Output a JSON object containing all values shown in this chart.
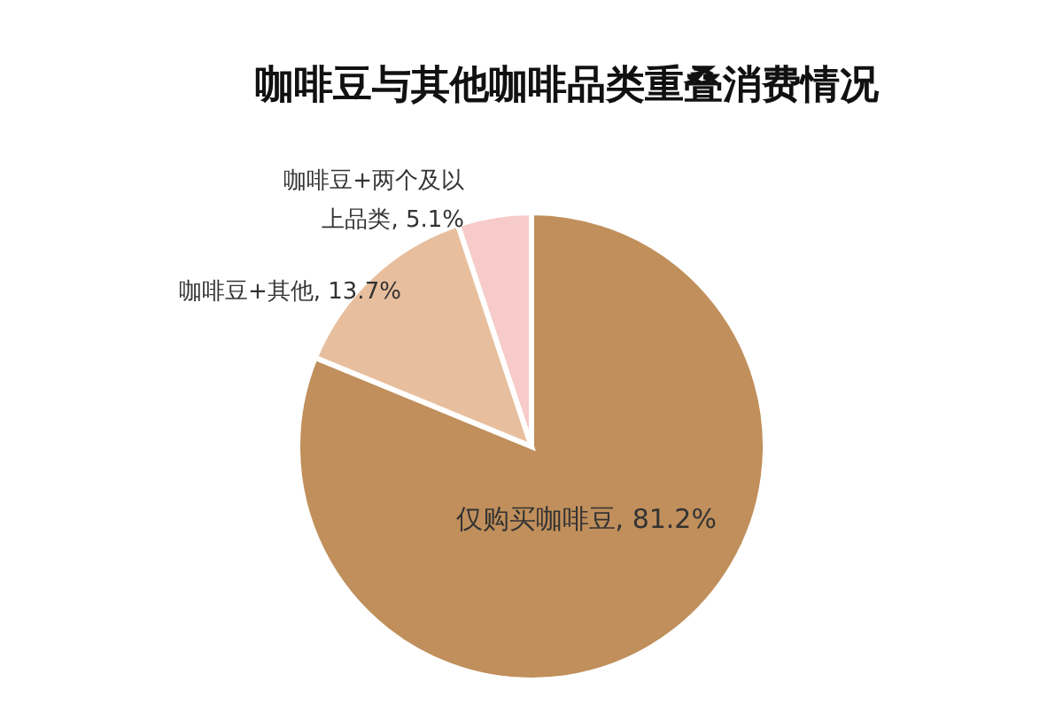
{
  "chart_data": {
    "type": "pie",
    "title": "咖啡豆与其他咖啡品类重叠消费情况",
    "categories": [
      "仅购买咖啡豆",
      "咖啡豆+其他",
      "咖啡豆+两个及以上品类"
    ],
    "values": [
      81.2,
      13.7,
      5.1
    ],
    "value_labels": [
      "81.2%",
      "13.7%",
      "5.1%"
    ],
    "colors": [
      "#c08f5b",
      "#e8bf9e",
      "#f6cbc9"
    ]
  }
}
